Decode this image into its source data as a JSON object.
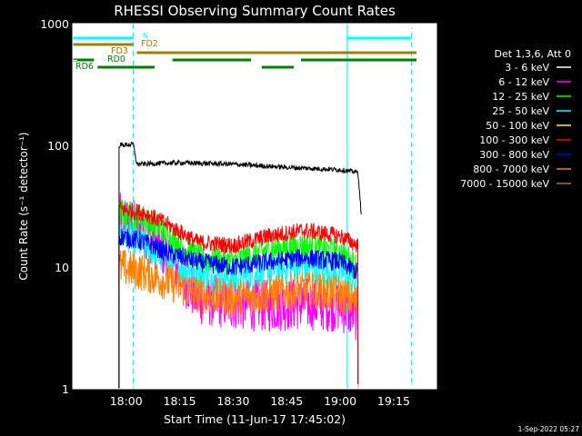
{
  "chart_data": {
    "type": "line",
    "title": "RHESSI Observing Summary Count Rates",
    "xlabel": "Start Time (11-Jun-17 17:45:02)",
    "ylabel": "Count Rate (s⁻¹ detector⁻¹)",
    "y_scale": "log",
    "ylim": [
      1,
      1000
    ],
    "xlim": [
      "17:45:02",
      "19:27"
    ],
    "x_ticks": [
      "18:00",
      "18:15",
      "18:30",
      "18:45",
      "19:00",
      "19:15"
    ],
    "y_ticks": [
      "1",
      "10",
      "100",
      "1000"
    ],
    "footer_date": "1-Sep-2022 05:27",
    "legend": {
      "header": "Det 1,3,6, Att 0",
      "placement": "right",
      "entries": [
        {
          "label": "3 - 6 keV",
          "color": "#ffffff"
        },
        {
          "label": "6 - 12 keV",
          "color": "#ff00ff"
        },
        {
          "label": "12 - 25 keV",
          "color": "#00ff00"
        },
        {
          "label": "25 - 50 keV",
          "color": "#00ffff"
        },
        {
          "label": "50 - 100 keV",
          "color": "#ffff00"
        },
        {
          "label": "100 - 300 keV",
          "color": "#ff0000"
        },
        {
          "label": "300 - 800 keV",
          "color": "#0000ff"
        },
        {
          "label": "800 - 7000 keV",
          "color": "#ff8000"
        },
        {
          "label": "7000 - 15000 keV",
          "color": "#a08000"
        }
      ]
    },
    "series": [
      {
        "name": "3 - 6 keV",
        "color": "#000000",
        "x": [
          "17:58",
          "18:02",
          "18:03",
          "18:15",
          "18:30",
          "18:45",
          "19:00",
          "19:05",
          "19:06"
        ],
        "values": [
          100,
          102,
          70,
          72,
          70,
          66,
          63,
          60,
          25
        ]
      },
      {
        "name": "6 - 12 keV",
        "color": "#ff00ff",
        "x": [
          "17:58",
          "18:05",
          "18:12",
          "18:20",
          "18:30",
          "18:40",
          "18:50",
          "19:00",
          "19:05"
        ],
        "values": [
          25,
          20,
          12,
          5.5,
          5,
          4.8,
          5,
          4.8,
          4
        ]
      },
      {
        "name": "12 - 25 keV",
        "color": "#00ff00",
        "x": [
          "17:58",
          "18:05",
          "18:12",
          "18:20",
          "18:30",
          "18:40",
          "18:50",
          "19:00",
          "19:05"
        ],
        "values": [
          28,
          25,
          18,
          12,
          11,
          14,
          15,
          13,
          10
        ]
      },
      {
        "name": "25 - 50 keV",
        "color": "#00ffff",
        "x": [
          "17:58",
          "18:05",
          "18:12",
          "18:20",
          "18:30",
          "18:40",
          "18:50",
          "19:00",
          "19:05"
        ],
        "values": [
          20,
          15,
          11,
          9,
          8,
          9.5,
          10,
          9,
          7
        ]
      },
      {
        "name": "100 - 300 keV",
        "color": "#ff0000",
        "x": [
          "17:58",
          "18:05",
          "18:12",
          "18:20",
          "18:30",
          "18:40",
          "18:50",
          "19:00",
          "19:05"
        ],
        "values": [
          30,
          28,
          22,
          16,
          15,
          18,
          20,
          18,
          15
        ]
      },
      {
        "name": "300 - 800 keV",
        "color": "#0000ff",
        "x": [
          "17:58",
          "18:05",
          "18:12",
          "18:20",
          "18:30",
          "18:40",
          "18:50",
          "19:00",
          "19:05"
        ],
        "values": [
          18,
          16,
          13,
          11,
          10,
          11,
          12,
          11,
          9
        ]
      },
      {
        "name": "800 - 7000 keV",
        "color": "#ff8000",
        "x": [
          "17:58",
          "18:05",
          "18:12",
          "18:20",
          "18:30",
          "18:40",
          "18:50",
          "19:00",
          "19:05"
        ],
        "values": [
          10,
          9,
          7.5,
          6,
          5.5,
          6,
          6.5,
          6,
          5
        ]
      }
    ],
    "state_bars": [
      {
        "label": "N",
        "color": "#00ffff",
        "segments": [
          [
            "17:45",
            "18:02"
          ],
          [
            "19:02",
            "19:20"
          ]
        ]
      },
      {
        "label": "FD2",
        "color": "#a08000",
        "segments": [
          [
            "17:45",
            "18:02"
          ]
        ]
      },
      {
        "label": "FD3",
        "color": "#a08000",
        "segments": [
          [
            "18:03",
            "19:27"
          ]
        ]
      },
      {
        "label": "RD0",
        "color": "#008000",
        "segments": [
          [
            "17:45",
            "17:51"
          ],
          [
            "18:13",
            "18:35"
          ],
          [
            "18:49",
            "19:27"
          ]
        ]
      },
      {
        "label": "RD6",
        "color": "#008000",
        "segments": [
          [
            "17:52",
            "18:08"
          ],
          [
            "18:38",
            "18:47"
          ]
        ]
      }
    ],
    "vertical_lines": [
      {
        "x": "18:02",
        "style": "dashed",
        "color": "#00ffff"
      },
      {
        "x": "19:02",
        "style": "solid",
        "color": "#00ffff"
      },
      {
        "x": "19:20",
        "style": "dashed",
        "color": "#00ffff"
      }
    ]
  }
}
